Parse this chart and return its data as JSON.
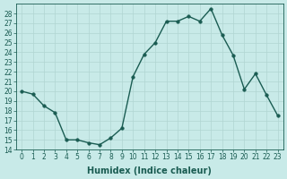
{
  "x": [
    0,
    1,
    2,
    3,
    4,
    5,
    6,
    7,
    8,
    9,
    10,
    11,
    12,
    13,
    14,
    15,
    16,
    17,
    18,
    19,
    20,
    21,
    22,
    23
  ],
  "y": [
    20.0,
    19.7,
    18.5,
    17.8,
    15.0,
    15.0,
    14.7,
    14.5,
    15.2,
    16.2,
    21.5,
    23.8,
    25.0,
    27.2,
    27.2,
    27.7,
    27.2,
    28.5,
    25.8,
    23.7,
    20.2,
    21.8,
    19.6,
    17.5
  ],
  "line_color": "#1a5c52",
  "marker": "o",
  "markersize": 2.5,
  "linewidth": 1.0,
  "bg_color": "#c8eae8",
  "grid_color": "#b0d5d2",
  "xlabel": "Humidex (Indice chaleur)",
  "ylim": [
    14,
    29
  ],
  "xlim": [
    -0.5,
    23.5
  ],
  "yticks": [
    14,
    15,
    16,
    17,
    18,
    19,
    20,
    21,
    22,
    23,
    24,
    25,
    26,
    27,
    28
  ],
  "xticks": [
    0,
    1,
    2,
    3,
    4,
    5,
    6,
    7,
    8,
    9,
    10,
    11,
    12,
    13,
    14,
    15,
    16,
    17,
    18,
    19,
    20,
    21,
    22,
    23
  ],
  "xtick_labels": [
    "0",
    "1",
    "2",
    "3",
    "4",
    "5",
    "6",
    "7",
    "8",
    "9",
    "10",
    "11",
    "12",
    "13",
    "14",
    "15",
    "16",
    "17",
    "18",
    "19",
    "20",
    "21",
    "22",
    "23"
  ],
  "tick_color": "#1a5c52",
  "label_fontsize": 7,
  "tick_fontsize": 5.5
}
